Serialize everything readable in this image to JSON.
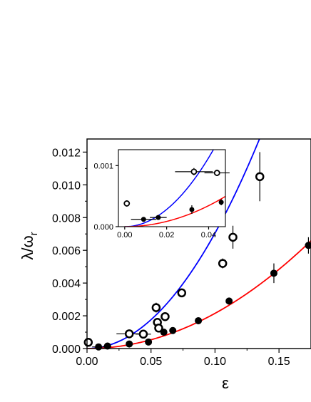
{
  "chart_data": {
    "type": "scatter",
    "title": "",
    "xlabel": "ε",
    "ylabel_main": "λ/ω",
    "ylabel_sub": "r",
    "xlim": [
      0.0,
      0.175
    ],
    "ylim": [
      0.0,
      0.0128
    ],
    "x_ticks": [
      "0.00",
      "0.05",
      "0.10",
      "0.15"
    ],
    "x_tick_values": [
      0.0,
      0.05,
      0.1,
      0.15
    ],
    "y_ticks": [
      "0.000",
      "0.002",
      "0.004",
      "0.006",
      "0.008",
      "0.010",
      "0.012"
    ],
    "y_tick_values": [
      0.0,
      0.002,
      0.004,
      0.006,
      0.008,
      0.01,
      0.012
    ],
    "series": [
      {
        "marker": "open-circle",
        "color": "#000000",
        "points": [
          {
            "x": 0.001,
            "y": 0.00038,
            "xerr": 0.002,
            "yerr": 8e-05
          },
          {
            "x": 0.033,
            "y": 0.0009,
            "xerr": 0.01,
            "yerr": 0.0001
          },
          {
            "x": 0.044,
            "y": 0.00088,
            "xerr": 0.006,
            "yerr": 8e-05
          },
          {
            "x": 0.054,
            "y": 0.0025,
            "xerr": 0.001,
            "yerr": 0.0003
          },
          {
            "x": 0.055,
            "y": 0.0016,
            "xerr": 0.001,
            "yerr": 0.0002
          },
          {
            "x": 0.056,
            "y": 0.00125,
            "xerr": 0.001,
            "yerr": 0.0002
          },
          {
            "x": 0.061,
            "y": 0.00195,
            "xerr": 0.001,
            "yerr": 0.0001
          },
          {
            "x": 0.074,
            "y": 0.0034,
            "xerr": 0.001,
            "yerr": 0.0002
          },
          {
            "x": 0.106,
            "y": 0.0052,
            "xerr": 0.001,
            "yerr": 0.0003
          },
          {
            "x": 0.114,
            "y": 0.0068,
            "xerr": 0.001,
            "yerr": 0.0007
          },
          {
            "x": 0.135,
            "y": 0.0105,
            "xerr": 0.001,
            "yerr": 0.0015
          }
        ]
      },
      {
        "marker": "filled-circle",
        "color": "#000000",
        "points": [
          {
            "x": 0.009,
            "y": 0.0001,
            "xerr": 0.005,
            "yerr": 3e-05
          },
          {
            "x": 0.016,
            "y": 0.00015,
            "xerr": 0.003,
            "yerr": 3e-05
          },
          {
            "x": 0.033,
            "y": 0.00028,
            "xerr": 0.001,
            "yerr": 0.0001
          },
          {
            "x": 0.048,
            "y": 0.0004,
            "xerr": 0.001,
            "yerr": 0.0001
          },
          {
            "x": 0.06,
            "y": 0.001,
            "xerr": 0.001,
            "yerr": 0.0001
          },
          {
            "x": 0.067,
            "y": 0.0011,
            "xerr": 0.001,
            "yerr": 0.0001
          },
          {
            "x": 0.087,
            "y": 0.0017,
            "xerr": 0.001,
            "yerr": 0.0001
          },
          {
            "x": 0.111,
            "y": 0.0029,
            "xerr": 0.002,
            "yerr": 0.0002
          },
          {
            "x": 0.146,
            "y": 0.0046,
            "xerr": 0.002,
            "yerr": 0.0006
          },
          {
            "x": 0.173,
            "y": 0.0063,
            "xerr": 0.001,
            "yerr": 0.0005
          }
        ]
      }
    ],
    "fit_curves": [
      {
        "color": "#0000ff",
        "coef": 0.705,
        "power": 2.0
      },
      {
        "color": "#ff0000",
        "coef": 0.215,
        "power": 2.0
      }
    ],
    "inset": {
      "xlim": [
        -0.003,
        0.048
      ],
      "ylim": [
        0.0,
        0.00126
      ],
      "x_ticks": [
        "0.00",
        "0.02",
        "0.04"
      ],
      "x_tick_values": [
        0.0,
        0.02,
        0.04
      ],
      "y_ticks": [
        "0.000",
        "0.001"
      ],
      "y_tick_values": [
        0.0,
        0.001
      ],
      "series": [
        {
          "marker": "open-circle",
          "points": [
            {
              "x": 0.001,
              "y": 0.00038,
              "xerr": 0.001,
              "yerr": 5e-05
            },
            {
              "x": 0.033,
              "y": 0.0009,
              "xerr": 0.009,
              "yerr": 6e-05
            },
            {
              "x": 0.044,
              "y": 0.00088,
              "xerr": 0.006,
              "yerr": 5e-05
            }
          ]
        },
        {
          "marker": "filled-circle",
          "points": [
            {
              "x": 0.009,
              "y": 0.00012,
              "xerr": 0.006,
              "yerr": 2e-05
            },
            {
              "x": 0.016,
              "y": 0.00015,
              "xerr": 0.004,
              "yerr": 2e-05
            },
            {
              "x": 0.032,
              "y": 0.00028,
              "xerr": 0.001,
              "yerr": 7e-05
            },
            {
              "x": 0.046,
              "y": 0.0004,
              "xerr": 0.001,
              "yerr": 5e-05
            }
          ]
        }
      ]
    }
  }
}
